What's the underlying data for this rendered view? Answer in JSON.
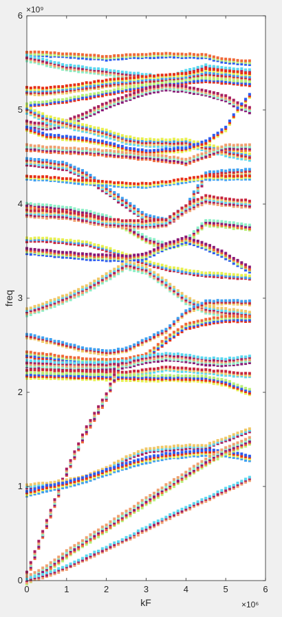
{
  "chart_data": {
    "type": "scatter",
    "title": "",
    "xlabel": "kF",
    "ylabel": "freq",
    "x_multiplier": "×10⁶",
    "y_multiplier": "×10⁹",
    "xlim": [
      0,
      6
    ],
    "ylim": [
      0,
      6
    ],
    "x_ticks": [
      0,
      1,
      2,
      3,
      4,
      5,
      6
    ],
    "y_ticks": [
      0,
      1,
      2,
      3,
      4,
      5,
      6
    ],
    "x_tick_labels": [
      "0",
      "1",
      "2",
      "3",
      "4",
      "5",
      "6"
    ],
    "y_tick_labels": [
      "0",
      "1",
      "2",
      "3",
      "4",
      "5",
      "6"
    ],
    "grid": false,
    "x_units_note": "x values in units of 1e6; y values in units of 1e9",
    "marker": "square",
    "colormap": [
      "#2c5cf0",
      "#3fa0f0",
      "#5ad8f0",
      "#8cf0c8",
      "#b8f078",
      "#e8f050",
      "#f0c868",
      "#f0a070",
      "#f06838",
      "#e83018",
      "#c82840",
      "#a82060",
      "#8a1a78"
    ],
    "branch_knots": [
      {
        "x": [
          0,
          1.0,
          2.0,
          2.6,
          3.5,
          4.5,
          5.0,
          5.6
        ],
        "y": [
          5.6,
          5.58,
          5.55,
          5.57,
          5.58,
          5.57,
          5.52,
          5.5
        ]
      },
      {
        "x": [
          0,
          0.5,
          1.0,
          2.0,
          3.0,
          3.5,
          4.5,
          5.0,
          5.6
        ],
        "y": [
          5.55,
          5.5,
          5.45,
          5.4,
          5.35,
          5.33,
          5.45,
          5.42,
          5.4
        ]
      },
      {
        "x": [
          0,
          0.5,
          1.0,
          2.0,
          3.0,
          4.0,
          4.5,
          5.0,
          5.6
        ],
        "y": [
          5.2,
          5.2,
          5.22,
          5.28,
          5.32,
          5.35,
          5.4,
          5.38,
          5.35
        ]
      },
      {
        "x": [
          0,
          1.0,
          2.0,
          3.0,
          4.0,
          4.5,
          5.0,
          5.6
        ],
        "y": [
          5.05,
          5.1,
          5.18,
          5.25,
          5.3,
          5.32,
          5.3,
          5.28
        ]
      },
      {
        "x": [
          0,
          0.5,
          1.0,
          1.5,
          2.0,
          3.0,
          3.5,
          4.0,
          4.5,
          5.0,
          5.3,
          5.6
        ],
        "y": [
          4.85,
          4.82,
          4.86,
          4.95,
          5.05,
          5.2,
          5.24,
          5.22,
          5.18,
          5.12,
          5.05,
          5.0
        ]
      },
      {
        "x": [
          0,
          0.5,
          1.0,
          2.0,
          2.5,
          3.0,
          4.0,
          4.5,
          5.0,
          5.6
        ],
        "y": [
          5.0,
          4.9,
          4.85,
          4.75,
          4.68,
          4.65,
          4.65,
          4.6,
          4.55,
          4.5
        ]
      },
      {
        "x": [
          0,
          0.5,
          1.0,
          1.5,
          2.0,
          2.5,
          3.0,
          4.0,
          4.5,
          5.0,
          5.3,
          5.6
        ],
        "y": [
          4.8,
          4.72,
          4.7,
          4.68,
          4.64,
          4.58,
          4.55,
          4.58,
          4.65,
          4.8,
          5.0,
          5.15
        ]
      },
      {
        "x": [
          0,
          0.5,
          1.0,
          1.5,
          2.0,
          2.5,
          3.0,
          3.5,
          4.0,
          4.5,
          5.0,
          5.6
        ],
        "y": [
          4.6,
          4.58,
          4.57,
          4.56,
          4.54,
          4.52,
          4.5,
          4.48,
          4.45,
          4.52,
          4.6,
          4.6
        ]
      },
      {
        "x": [
          0,
          0.5,
          1.0,
          1.5,
          2.0,
          2.5,
          3.0,
          3.5,
          4.0,
          4.5,
          5.0,
          5.6
        ],
        "y": [
          4.45,
          4.43,
          4.4,
          4.3,
          4.15,
          4.0,
          3.85,
          3.8,
          3.95,
          4.3,
          4.32,
          4.33
        ]
      },
      {
        "x": [
          0,
          0.5,
          1.0,
          1.5,
          2.0,
          2.5,
          3.0,
          3.5,
          4.0,
          4.5,
          5.0,
          5.6
        ],
        "y": [
          4.28,
          4.27,
          4.25,
          4.23,
          4.22,
          4.2,
          4.2,
          4.22,
          4.25,
          4.28,
          4.28,
          4.28
        ]
      },
      {
        "x": [
          0,
          0.5,
          1.0,
          1.5,
          2.0,
          2.5,
          3.0,
          3.5,
          4.0,
          4.5,
          5.0,
          5.6
        ],
        "y": [
          3.98,
          3.96,
          3.94,
          3.9,
          3.85,
          3.75,
          3.62,
          3.55,
          3.6,
          3.8,
          3.78,
          3.75
        ]
      },
      {
        "x": [
          0,
          1.0,
          2.0,
          3.0,
          3.5,
          4.0,
          4.5,
          5.0,
          5.6
        ],
        "y": [
          3.9,
          3.88,
          3.8,
          3.78,
          3.8,
          3.95,
          4.05,
          4.02,
          4.0
        ]
      },
      {
        "x": [
          0,
          0.5,
          1.0,
          1.5,
          2.0,
          2.5,
          3.0,
          3.5,
          4.0,
          4.5,
          5.0,
          5.6
        ],
        "y": [
          3.62,
          3.62,
          3.6,
          3.58,
          3.52,
          3.45,
          3.38,
          3.32,
          3.28,
          3.25,
          3.24,
          3.22
        ]
      },
      {
        "x": [
          0,
          0.5,
          1.0,
          1.5,
          2.0,
          2.5,
          3.0,
          3.5,
          4.0,
          4.5,
          5.0,
          5.6
        ],
        "y": [
          3.5,
          3.48,
          3.46,
          3.44,
          3.43,
          3.42,
          3.45,
          3.55,
          3.62,
          3.55,
          3.45,
          3.3
        ]
      },
      {
        "x": [
          0,
          0.5,
          1.0,
          1.5,
          2.0,
          2.5,
          3.0,
          3.5,
          4.0,
          4.5,
          5.0,
          5.6
        ],
        "y": [
          2.85,
          2.92,
          3.0,
          3.1,
          3.22,
          3.35,
          3.3,
          3.15,
          2.98,
          2.88,
          2.85,
          2.82
        ]
      },
      {
        "x": [
          0,
          0.5,
          1.0,
          1.5,
          2.0,
          2.5,
          3.0,
          3.5,
          4.0,
          4.5,
          5.0,
          5.6
        ],
        "y": [
          2.6,
          2.55,
          2.5,
          2.45,
          2.42,
          2.45,
          2.55,
          2.65,
          2.85,
          2.95,
          2.96,
          2.95
        ]
      },
      {
        "x": [
          0,
          0.5,
          1.0,
          1.5,
          2.0,
          2.5,
          3.0,
          3.5,
          4.0,
          4.5,
          5.0,
          5.6
        ],
        "y": [
          2.4,
          2.38,
          2.35,
          2.33,
          2.32,
          2.33,
          2.38,
          2.55,
          2.7,
          2.75,
          2.78,
          2.78
        ]
      },
      {
        "x": [
          0,
          0.5,
          1.0,
          1.5,
          2.0,
          2.5,
          3.0,
          3.5,
          4.0,
          4.5,
          5.0,
          5.6
        ],
        "y": [
          2.3,
          2.29,
          2.28,
          2.28,
          2.28,
          2.3,
          2.35,
          2.38,
          2.36,
          2.33,
          2.32,
          2.35
        ]
      },
      {
        "x": [
          0,
          0.5,
          1.0,
          1.5,
          2.0,
          2.5,
          3.0,
          3.5,
          4.0,
          4.5,
          5.0,
          5.6
        ],
        "y": [
          2.22,
          2.22,
          2.21,
          2.21,
          2.2,
          2.2,
          2.22,
          2.25,
          2.24,
          2.22,
          2.2,
          2.18
        ]
      },
      {
        "x": [
          0,
          1.0,
          2.0,
          3.0,
          3.5,
          4.0,
          4.5,
          5.0,
          5.3,
          5.6
        ],
        "y": [
          2.18,
          2.17,
          2.16,
          2.15,
          2.15,
          2.15,
          2.14,
          2.1,
          2.05,
          2.0
        ]
      },
      {
        "x": [
          0,
          0.5,
          1.0,
          1.5,
          2.0,
          2.3
        ],
        "y": [
          0.05,
          0.6,
          1.15,
          1.6,
          1.95,
          2.25
        ]
      },
      {
        "x": [
          0,
          0.5,
          1.0,
          1.5,
          2.0,
          2.5,
          3.0,
          3.5,
          4.0,
          4.5,
          5.0,
          5.6
        ],
        "y": [
          1.0,
          1.02,
          1.05,
          1.1,
          1.18,
          1.3,
          1.38,
          1.4,
          1.42,
          1.42,
          1.5,
          1.6
        ]
      },
      {
        "x": [
          0,
          0.5,
          1.0,
          1.5,
          2.0,
          2.5,
          3.0,
          3.5,
          4.0,
          4.5,
          5.0,
          5.6
        ],
        "y": [
          0.92,
          0.98,
          1.02,
          1.08,
          1.15,
          1.22,
          1.28,
          1.32,
          1.34,
          1.36,
          1.35,
          1.3
        ]
      },
      {
        "x": [
          0,
          0.5,
          1.0,
          1.5,
          2.0,
          2.5,
          3.0,
          3.5,
          4.0,
          4.5,
          5.0,
          5.6
        ],
        "y": [
          0,
          0.12,
          0.28,
          0.42,
          0.56,
          0.7,
          0.84,
          0.98,
          1.12,
          1.26,
          1.38,
          1.48
        ]
      },
      {
        "x": [
          0,
          0.5,
          1.0,
          1.5,
          2.0,
          2.5,
          3.0,
          3.5,
          4.0,
          4.5,
          5.0,
          5.6
        ],
        "y": [
          0,
          0.06,
          0.14,
          0.24,
          0.34,
          0.44,
          0.55,
          0.66,
          0.76,
          0.86,
          0.96,
          1.08
        ]
      }
    ]
  }
}
